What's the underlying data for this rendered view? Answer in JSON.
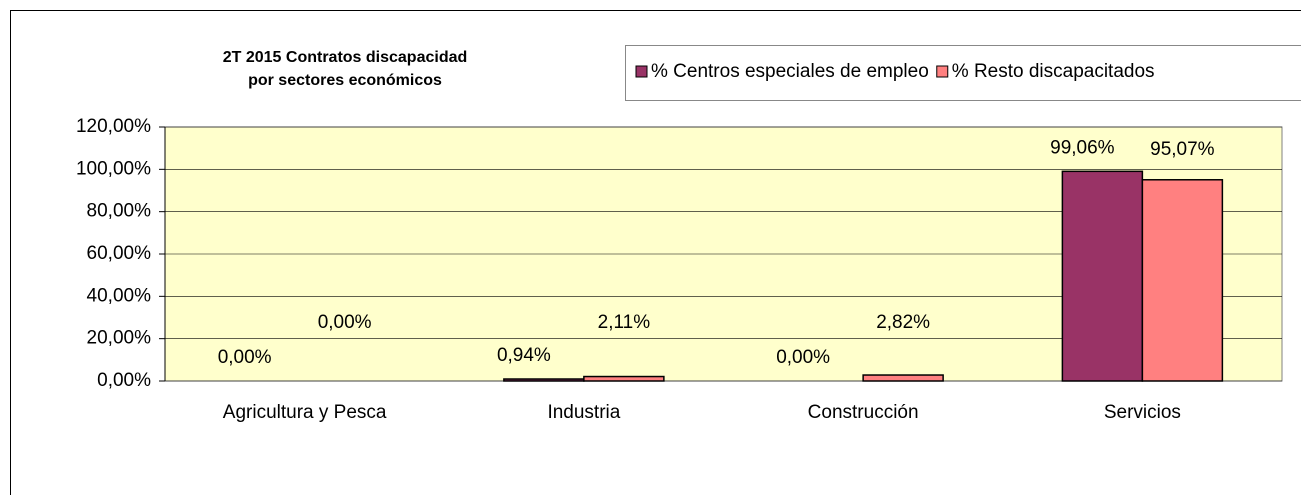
{
  "chart_data": {
    "type": "bar",
    "title": [
      "2T 2015 Contratos discapacidad",
      "por sectores económicos"
    ],
    "categories": [
      "Agricultura y Pesca",
      "Industria",
      "Construcción",
      "Servicios"
    ],
    "series": [
      {
        "name": "% Centros especiales de empleo",
        "color": "#993366",
        "values": [
          0,
          0.94,
          0,
          99.06
        ],
        "value_labels": [
          "0,00%",
          "0,94%",
          "0,00%",
          "99,06%"
        ]
      },
      {
        "name": "% Resto discapacitados",
        "color": "#ff8080",
        "values": [
          0,
          2.11,
          2.82,
          95.07
        ],
        "value_labels": [
          "0,00%",
          "2,11%",
          "2,82%",
          "95,07%"
        ]
      }
    ],
    "ylim": [
      0,
      120
    ],
    "yticks": [
      {
        "value": 0,
        "label": "0,00%"
      },
      {
        "value": 20,
        "label": "20,00%"
      },
      {
        "value": 40,
        "label": "40,00%"
      },
      {
        "value": 60,
        "label": "60,00%"
      },
      {
        "value": 80,
        "label": "80,00%"
      },
      {
        "value": 100,
        "label": "100,00%"
      },
      {
        "value": 120,
        "label": "120,00%"
      }
    ],
    "grid": true,
    "plot_background": "#ffffcc",
    "legend": "top-right"
  }
}
